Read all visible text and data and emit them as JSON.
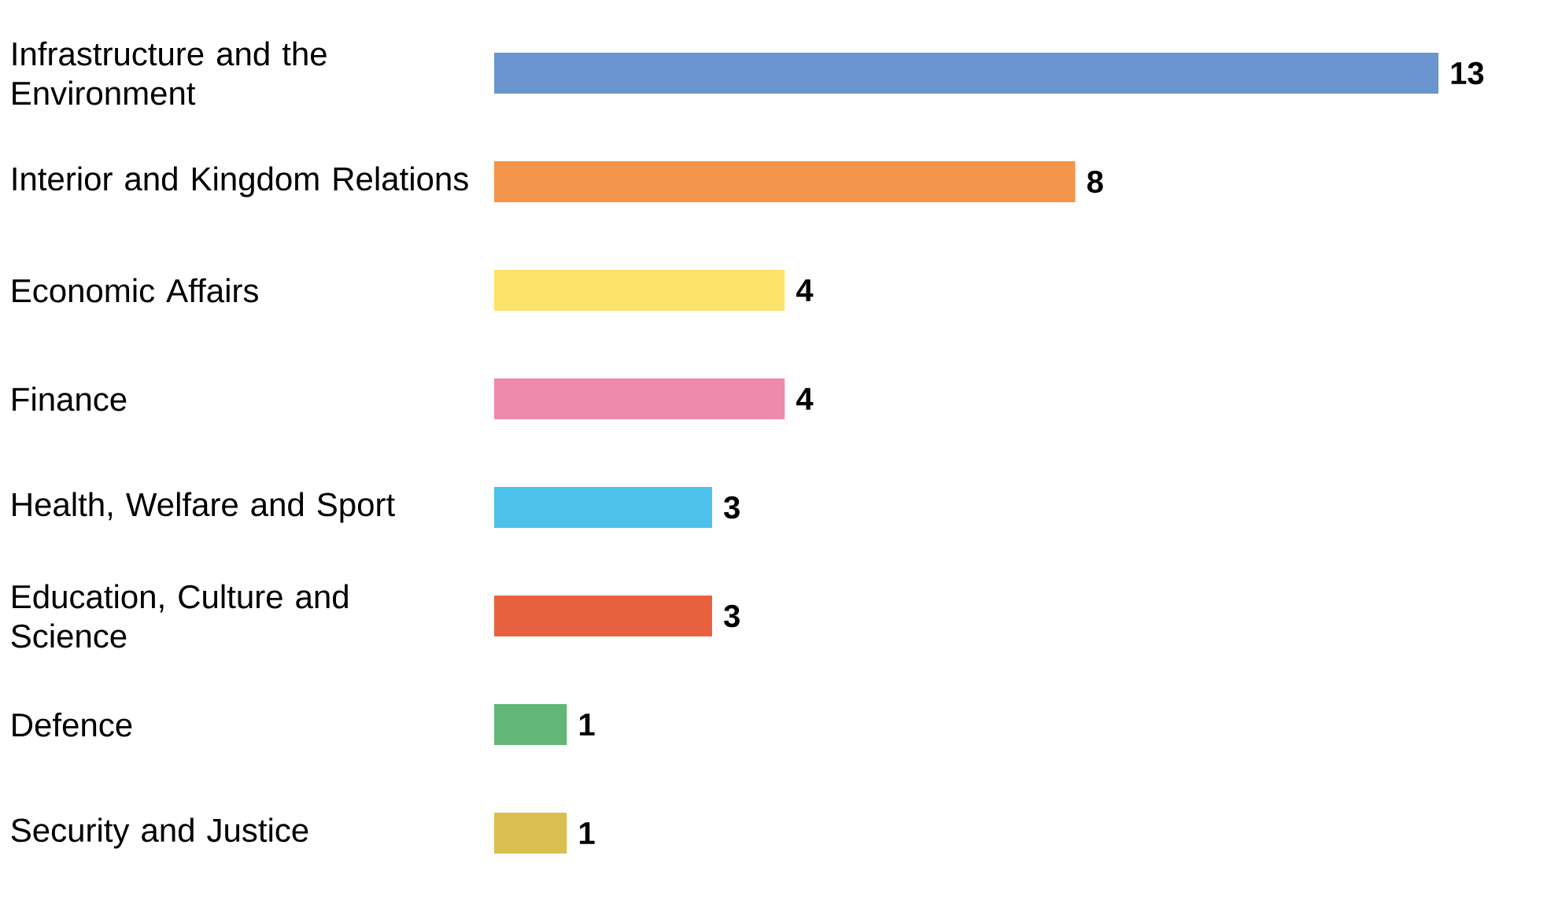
{
  "chart_data": {
    "type": "bar",
    "orientation": "horizontal",
    "tick_labels": "y",
    "data_labels": true,
    "categories": [
      "Infrastructure and the Environment",
      "Interior and Kingdom Relations",
      "Economic Affairs",
      "Finance",
      "Health, Welfare and Sport",
      "Education, Culture and Science",
      "Defence",
      "Security and Justice"
    ],
    "values": [
      13,
      8,
      4,
      4,
      3,
      3,
      1,
      1
    ],
    "colors": [
      "#6a95cf",
      "#f2944a",
      "#fde36c",
      "#ee8aab",
      "#4dc1eb",
      "#e8613f",
      "#62b776",
      "#d9bf4f"
    ]
  }
}
